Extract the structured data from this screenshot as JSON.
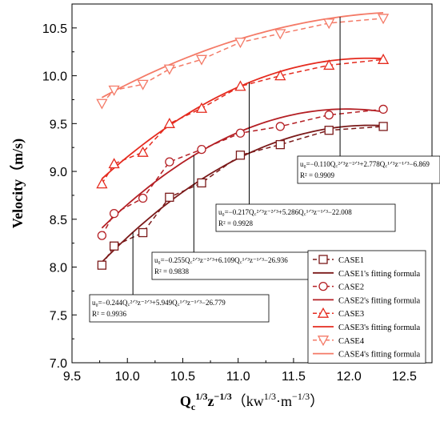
{
  "chart_data": {
    "type": "line",
    "xlabel": "Q_c^{1/3} z^{-1/3} (kw^{1/3}·m^{-1/3})",
    "ylabel": "Velocity (m/s)",
    "xlim": [
      9.5,
      12.75
    ],
    "ylim": [
      7.0,
      10.75
    ],
    "xticks": [
      "9.5",
      "10.0",
      "10.5",
      "11.0",
      "11.5",
      "12.0",
      "12.5"
    ],
    "yticks": [
      "7.0",
      "7.5",
      "8.0",
      "8.5",
      "9.0",
      "9.5",
      "10.0",
      "10.5"
    ],
    "grid": false,
    "legend_position": "bottom-right",
    "series": [
      {
        "name": "CASE1",
        "fit_name": "CASE1's fitting formula",
        "marker": "square",
        "color": "#7b1a1a",
        "x": [
          9.77,
          9.88,
          10.14,
          10.38,
          10.67,
          11.02,
          11.38,
          11.82,
          12.31
        ],
        "y": [
          8.02,
          8.22,
          8.36,
          8.73,
          8.88,
          9.17,
          9.28,
          9.43,
          9.47
        ],
        "fit": [
          -0.244,
          5.949,
          -26.779
        ]
      },
      {
        "name": "CASE2",
        "fit_name": "CASE2's fitting formula",
        "marker": "circle",
        "color": "#b41f24",
        "x": [
          9.77,
          9.88,
          10.14,
          10.38,
          10.67,
          11.02,
          11.38,
          11.82,
          12.31
        ],
        "y": [
          8.33,
          8.56,
          8.72,
          9.1,
          9.23,
          9.4,
          9.47,
          9.59,
          9.65
        ],
        "fit": [
          -0.255,
          6.109,
          -26.936
        ]
      },
      {
        "name": "CASE3",
        "fit_name": "CASE3's fitting formula",
        "marker": "triangle-up",
        "color": "#e52b1f",
        "x": [
          9.77,
          9.88,
          10.14,
          10.38,
          10.67,
          11.02,
          11.38,
          11.82,
          12.31
        ],
        "y": [
          8.87,
          9.08,
          9.2,
          9.5,
          9.66,
          9.89,
          10.0,
          10.11,
          10.17
        ],
        "fit": [
          -0.217,
          5.286,
          -22.008
        ]
      },
      {
        "name": "CASE4",
        "fit_name": "CASE4's fitting formula",
        "marker": "triangle-down",
        "color": "#f47a67",
        "x": [
          9.77,
          9.88,
          10.14,
          10.38,
          10.67,
          11.02,
          11.38,
          11.82,
          12.31
        ],
        "y": [
          9.71,
          9.85,
          9.91,
          10.07,
          10.17,
          10.35,
          10.44,
          10.55,
          10.6
        ],
        "fit": [
          -0.11,
          2.778,
          -6.869
        ]
      }
    ],
    "annotations": [
      {
        "series": 0,
        "lines": [
          "u0=-0.244Qc^{2/3}z^{-2/3}+5.949Qc^{1/3}z^{-1/3}-26.779",
          "R² = 0.9936"
        ],
        "eq": "u₀=−0.244Q꜀²ᐟ³z⁻²ᐟ³+5.949Q꜀¹ᐟ³z⁻¹ᐟ³−26.779",
        "r2": "R² = 0.9936",
        "point_x": 10.05
      },
      {
        "series": 1,
        "eq": "u₀=−0.255Q꜀²ᐟ³z⁻²ᐟ³+6.109Q꜀¹ᐟ³z⁻¹ᐟ³−26.936",
        "r2": "R² = 0.9838",
        "point_x": 10.6
      },
      {
        "series": 2,
        "eq": "u₀=−0.217Q꜀²ᐟ³z⁻²ᐟ³+5.286Q꜀¹ᐟ³z⁻¹ᐟ³−22.008",
        "r2": "R² = 0.9928",
        "point_x": 11.1
      },
      {
        "series": 3,
        "eq": "u₀=−0.110Q꜀²ᐟ³z⁻²ᐟ³+2.778Q꜀¹ᐟ³z⁻¹ᐟ³−6.869",
        "r2": "R² = 0.9909",
        "point_x": 11.92
      }
    ]
  }
}
